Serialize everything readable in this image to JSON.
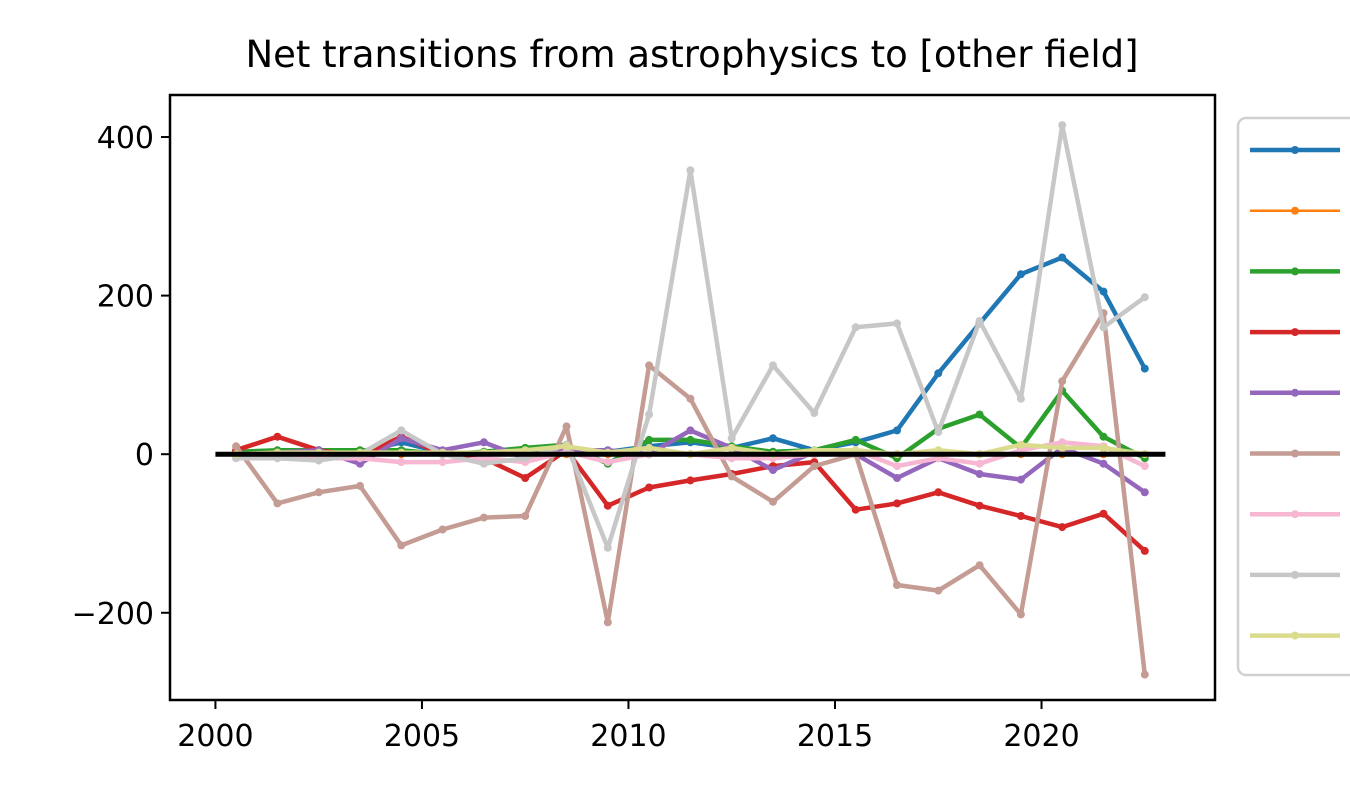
{
  "chart_data": {
    "type": "line",
    "title": "Net transitions from astrophysics to [other field]",
    "xlabel": "",
    "ylabel": "",
    "xlim": [
      1998.9,
      2024.2
    ],
    "ylim": [
      -310,
      453
    ],
    "xticks": [
      2000,
      2005,
      2010,
      2015,
      2020
    ],
    "yticks": [
      -200,
      0,
      200,
      400
    ],
    "ytick_labels": [
      "−200",
      "0",
      "200",
      "400"
    ],
    "grid": false,
    "legend_position": "right-outside",
    "baseline": {
      "x": [
        2000,
        2023
      ],
      "y": [
        0,
        0
      ],
      "color": "#000000"
    },
    "x": [
      2000.5,
      2001.5,
      2002.5,
      2003.5,
      2004.5,
      2005.5,
      2006.5,
      2007.5,
      2008.5,
      2009.5,
      2010.5,
      2011.5,
      2012.5,
      2013.5,
      2014.5,
      2015.5,
      2016.5,
      2017.5,
      2018.5,
      2019.5,
      2020.5,
      2021.5,
      2022.5
    ],
    "series": [
      {
        "color": "#1f77b4",
        "width": 4.5,
        "values": [
          2,
          3,
          2,
          2,
          15,
          2,
          0,
          2,
          5,
          3,
          10,
          15,
          8,
          20,
          5,
          15,
          30,
          102,
          165,
          227,
          248,
          205,
          108
        ]
      },
      {
        "color": "#ff7f0e",
        "width": 2.5,
        "values": [
          0,
          0,
          0,
          0,
          0,
          0,
          0,
          0,
          0,
          0,
          0,
          0,
          0,
          0,
          0,
          0,
          0,
          0,
          0,
          0,
          0,
          0,
          0
        ]
      },
      {
        "color": "#2ca02c",
        "width": 4.5,
        "values": [
          3,
          5,
          5,
          5,
          5,
          0,
          3,
          8,
          12,
          -12,
          18,
          18,
          10,
          3,
          5,
          18,
          -5,
          32,
          50,
          8,
          80,
          22,
          -5
        ]
      },
      {
        "color": "#d62728",
        "width": 4.5,
        "values": [
          5,
          22,
          5,
          -3,
          22,
          0,
          -5,
          -30,
          5,
          -65,
          -42,
          -33,
          -25,
          -15,
          -10,
          -70,
          -62,
          -48,
          -65,
          -78,
          -92,
          -75,
          -122
        ]
      },
      {
        "color": "#9467bd",
        "width": 4.5,
        "values": [
          0,
          2,
          5,
          -12,
          20,
          5,
          15,
          -5,
          5,
          5,
          0,
          30,
          8,
          -20,
          3,
          0,
          -30,
          -5,
          -25,
          -32,
          8,
          -12,
          -48
        ]
      },
      {
        "color": "#c49c94",
        "width": 4.5,
        "values": [
          10,
          -62,
          -48,
          -40,
          -115,
          -95,
          -80,
          -78,
          35,
          -212,
          112,
          70,
          -28,
          -60,
          -15,
          0,
          -165,
          -172,
          -140,
          -202,
          92,
          178,
          -278
        ]
      },
      {
        "color": "#f7b6d2",
        "width": 4.5,
        "values": [
          -5,
          -5,
          -5,
          -5,
          -10,
          -10,
          -5,
          -10,
          3,
          -10,
          0,
          0,
          -5,
          -5,
          0,
          5,
          -15,
          -5,
          -12,
          5,
          15,
          10,
          -15
        ]
      },
      {
        "color": "#c7c7c7",
        "width": 4.5,
        "values": [
          -5,
          -5,
          -8,
          0,
          30,
          0,
          -12,
          -5,
          12,
          -118,
          50,
          358,
          20,
          112,
          52,
          160,
          165,
          28,
          168,
          70,
          415,
          160,
          198
        ]
      },
      {
        "color": "#dbdb8d",
        "width": 4.5,
        "values": [
          0,
          2,
          2,
          2,
          2,
          2,
          2,
          5,
          10,
          2,
          8,
          0,
          8,
          0,
          5,
          5,
          0,
          5,
          0,
          12,
          8,
          8,
          0
        ]
      }
    ]
  }
}
